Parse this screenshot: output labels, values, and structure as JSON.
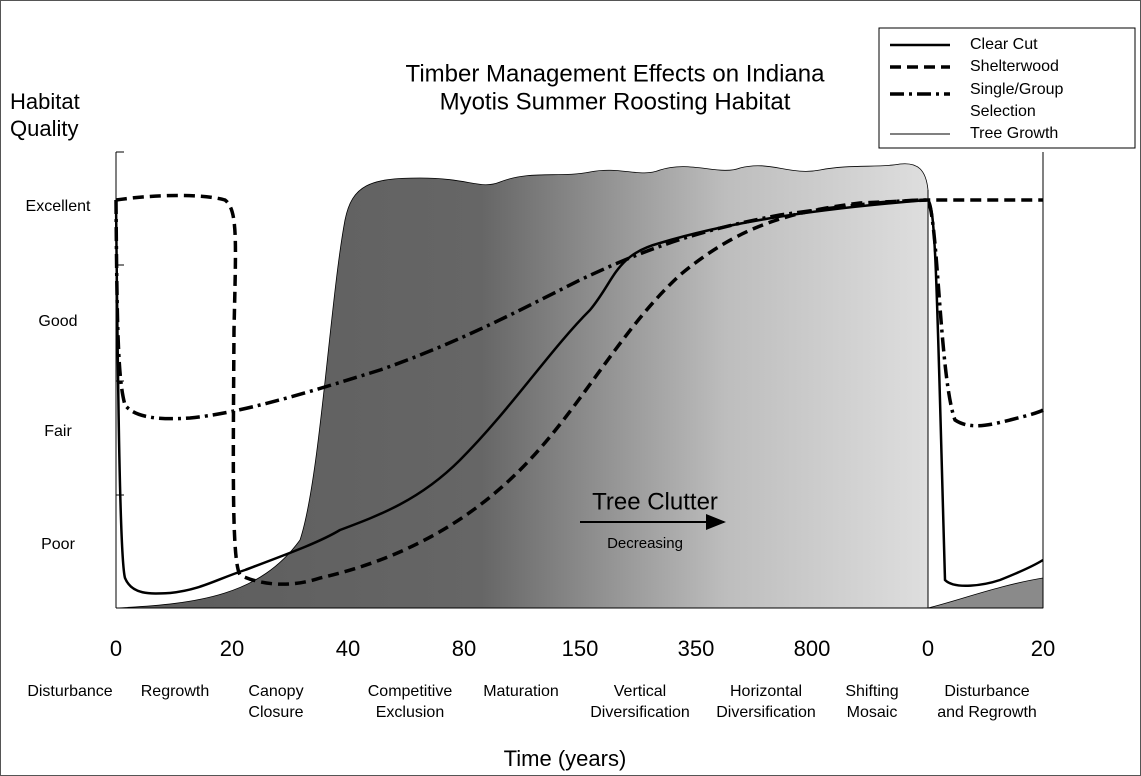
{
  "title": [
    "Timber Management Effects on Indiana",
    "Myotis Summer Roosting Habitat"
  ],
  "y_axis_label": [
    "Habitat",
    "Quality"
  ],
  "y_levels": [
    "Excellent",
    "Good",
    "Fair",
    "Poor"
  ],
  "x_ticks": [
    "0",
    "20",
    "40",
    "80",
    "150",
    "350",
    "800",
    "0",
    "20"
  ],
  "stages": [
    [
      "Disturbance"
    ],
    [
      "Regrowth"
    ],
    [
      "Canopy",
      "Closure"
    ],
    [
      "Competitive",
      "Exclusion"
    ],
    [
      "Maturation"
    ],
    [
      "Vertical",
      "Diversification"
    ],
    [
      "Horizontal",
      "Diversification"
    ],
    [
      "Shifting",
      "Mosaic"
    ],
    [
      "Disturbance",
      "and Regrowth"
    ]
  ],
  "x_axis_label": "Time (years)",
  "legend": [
    [
      "Clear Cut"
    ],
    [
      "Shelterwood"
    ],
    [
      "Single/Group",
      "Selection"
    ],
    [
      "Tree Growth"
    ]
  ],
  "annotation": {
    "title": "Tree Clutter",
    "subtitle": "Decreasing"
  }
}
